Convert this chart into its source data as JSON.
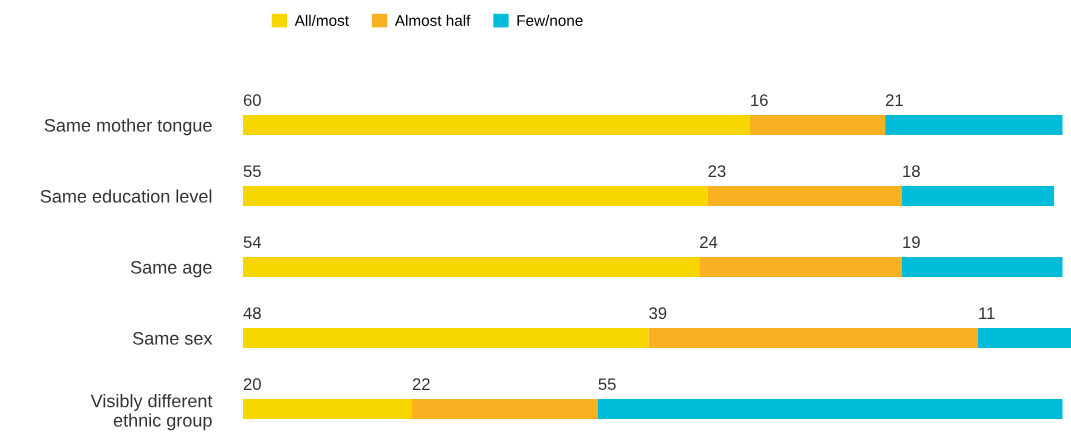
{
  "chart_data": {
    "type": "bar",
    "orientation": "horizontal",
    "stacked": true,
    "data_labels": true,
    "legend": "top",
    "grid": false,
    "categories": [
      "Same mother tongue",
      "Same education level",
      "Same age",
      "Same sex",
      "Visibly different\nethnic group"
    ],
    "series": [
      {
        "name": "All/most",
        "color": "#f7d600",
        "values": [
          60,
          55,
          54,
          48,
          20
        ]
      },
      {
        "name": "Almost half",
        "color": "#f9b122",
        "values": [
          16,
          23,
          24,
          39,
          22
        ]
      },
      {
        "name": "Few/none",
        "color": "#00bcd8",
        "values": [
          21,
          18,
          19,
          11,
          55
        ]
      }
    ]
  }
}
